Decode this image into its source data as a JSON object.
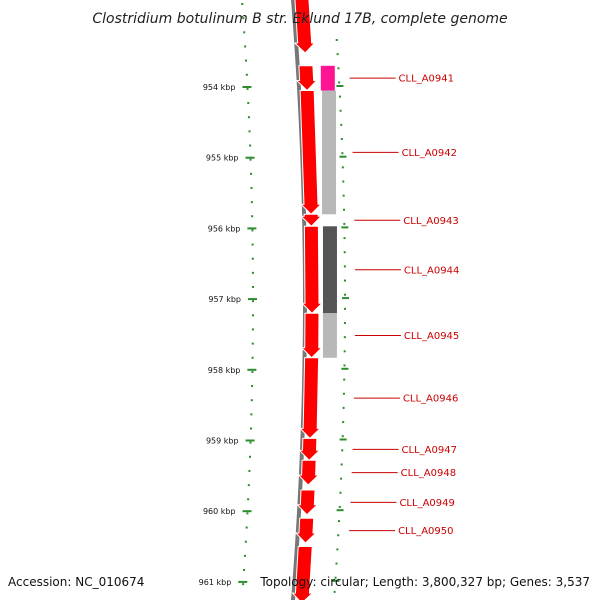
{
  "title": "Clostridium botulinum B str. Eklund 17B, complete genome",
  "footer": {
    "accession": "Accession: NC_010674",
    "topology": "Topology: circular; Length: 3,800,327 bp; Genes: 3,537"
  },
  "colors": {
    "backbone": "#777777",
    "gene_forward": "#ff0000",
    "ruler_ticks": "#2e8b2e",
    "labels": "#cc0000"
  },
  "ruler_labels": [
    "954 kbp",
    "955 kbp",
    "956 kbp",
    "957 kbp",
    "958 kbp",
    "959 kbp",
    "960 kbp",
    "961 kbp"
  ],
  "genes": [
    {
      "label": "CLL_A0941",
      "start_kbp": 953.7,
      "end_kbp": 954.05,
      "strand": "+",
      "feature_color": "#ff1493"
    },
    {
      "label": "CLL_A0942",
      "start_kbp": 954.05,
      "end_kbp": 955.8,
      "strand": "+",
      "feature_color": "#b8b8b8"
    },
    {
      "label": "CLL_A0943",
      "start_kbp": 955.8,
      "end_kbp": 955.97,
      "strand": "+",
      "feature_color": ""
    },
    {
      "label": "CLL_A0944",
      "start_kbp": 955.97,
      "end_kbp": 957.2,
      "strand": "+",
      "feature_color": "#555555"
    },
    {
      "label": "CLL_A0945",
      "start_kbp": 957.2,
      "end_kbp": 957.83,
      "strand": "+",
      "feature_color": "#b8b8b8"
    },
    {
      "label": "CLL_A0946",
      "start_kbp": 957.83,
      "end_kbp": 958.97,
      "strand": "+",
      "feature_color": ""
    },
    {
      "label": "CLL_A0947",
      "start_kbp": 958.97,
      "end_kbp": 959.28,
      "strand": "+",
      "feature_color": ""
    },
    {
      "label": "CLL_A0948",
      "start_kbp": 959.28,
      "end_kbp": 959.63,
      "strand": "+",
      "feature_color": ""
    },
    {
      "label": "CLL_A0949",
      "start_kbp": 959.7,
      "end_kbp": 960.05,
      "strand": "+",
      "feature_color": ""
    },
    {
      "label": "CLL_A0950",
      "start_kbp": 960.1,
      "end_kbp": 960.45,
      "strand": "+",
      "feature_color": ""
    },
    {
      "label": "",
      "start_kbp": 960.5,
      "end_kbp": 961.3,
      "strand": "+",
      "feature_color": ""
    }
  ]
}
